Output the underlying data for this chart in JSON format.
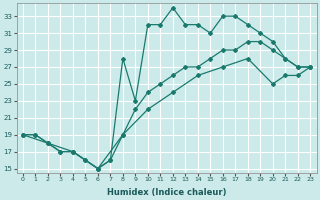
{
  "xlabel": "Humidex (Indice chaleur)",
  "bg_color": "#cceaea",
  "grid_color": "#ffffff",
  "line_color": "#1a7a6e",
  "xlim": [
    -0.5,
    23.5
  ],
  "ylim": [
    14.5,
    34.5
  ],
  "yticks": [
    15,
    17,
    19,
    21,
    23,
    25,
    27,
    29,
    31,
    33
  ],
  "xticks": [
    0,
    1,
    2,
    3,
    4,
    5,
    6,
    7,
    8,
    9,
    10,
    11,
    12,
    13,
    14,
    15,
    16,
    17,
    18,
    19,
    20,
    21,
    22,
    23
  ],
  "line1_x": [
    0,
    1,
    2,
    3,
    4,
    5,
    6,
    7,
    8,
    9,
    10,
    11,
    12,
    13,
    14,
    15,
    16,
    17,
    18,
    19,
    20,
    21,
    22,
    23
  ],
  "line1_y": [
    19,
    19,
    18,
    17,
    17,
    16,
    15,
    16,
    28,
    23,
    32,
    32,
    34,
    32,
    32,
    31,
    33,
    33,
    32,
    31,
    30,
    28,
    27,
    27
  ],
  "line2_x": [
    0,
    1,
    2,
    3,
    4,
    5,
    6,
    7,
    8,
    9,
    10,
    11,
    12,
    13,
    14,
    15,
    16,
    17,
    18,
    19,
    20,
    21,
    22,
    23
  ],
  "line2_y": [
    19,
    19,
    18,
    17,
    17,
    16,
    15,
    16,
    19,
    22,
    24,
    25,
    26,
    27,
    27,
    28,
    29,
    29,
    30,
    30,
    29,
    28,
    27,
    27
  ],
  "line3_x": [
    0,
    2,
    4,
    6,
    8,
    10,
    12,
    14,
    16,
    18,
    20,
    21,
    22,
    23
  ],
  "line3_y": [
    19,
    18,
    17,
    15,
    19,
    22,
    24,
    26,
    27,
    28,
    25,
    26,
    26,
    27
  ]
}
